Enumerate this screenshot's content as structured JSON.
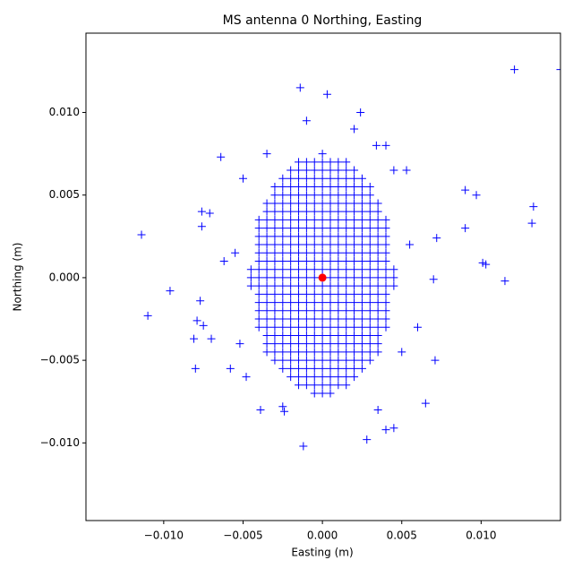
{
  "chart_data": {
    "type": "scatter",
    "title": "MS antenna 0 Northing, Easting",
    "x_label": "Easting (m)",
    "y_label": "Northing (m)",
    "xlim": [
      -0.0149,
      0.015
    ],
    "ylim": [
      -0.0147,
      0.0148
    ],
    "xticks": [
      {
        "value": -0.01,
        "label": "−0.010"
      },
      {
        "value": -0.005,
        "label": "−0.005"
      },
      {
        "value": 0,
        "label": "0.000"
      },
      {
        "value": 0.005,
        "label": "0.005"
      },
      {
        "value": 0.01,
        "label": "0.010"
      }
    ],
    "yticks": [
      {
        "value": -0.01,
        "label": "−0.010"
      },
      {
        "value": -0.005,
        "label": "−0.005"
      },
      {
        "value": 0,
        "label": "0.000"
      },
      {
        "value": 0.005,
        "label": "0.005"
      },
      {
        "value": 0.01,
        "label": "0.010"
      }
    ],
    "grid": false,
    "series": [
      {
        "color": "#0000ff",
        "marker": "+",
        "x": [
          0,
          -0.0015,
          -0.001,
          -0.0005,
          0,
          0.0005,
          0.001,
          0.0015,
          -0.002,
          -0.0015,
          -0.001,
          -0.0005,
          0,
          0.0005,
          0.001,
          0.0015,
          0.002,
          -0.0025,
          -0.002,
          -0.0015,
          -0.001,
          -0.0005,
          0,
          0.0005,
          0.001,
          0.0015,
          0.002,
          0.0025,
          -0.003,
          -0.0025,
          -0.002,
          -0.0015,
          -0.001,
          -0.0005,
          0,
          0.0005,
          0.001,
          0.0015,
          0.002,
          0.0025,
          0.003,
          -0.003,
          -0.0025,
          -0.002,
          -0.0015,
          -0.001,
          -0.0005,
          0,
          0.0005,
          0.001,
          0.0015,
          0.002,
          0.0025,
          0.003,
          -0.0035,
          -0.003,
          -0.0025,
          -0.002,
          -0.0015,
          -0.001,
          -0.0005,
          0,
          0.0005,
          0.001,
          0.0015,
          0.002,
          0.0025,
          0.003,
          0.0035,
          -0.0035,
          -0.003,
          -0.0025,
          -0.002,
          -0.0015,
          -0.001,
          -0.0005,
          0,
          0.0005,
          0.001,
          0.0015,
          0.002,
          0.0025,
          0.003,
          0.0035,
          -0.004,
          -0.0035,
          -0.003,
          -0.0025,
          -0.002,
          -0.0015,
          -0.001,
          -0.0005,
          0,
          0.0005,
          0.001,
          0.0015,
          0.002,
          0.0025,
          0.003,
          0.0035,
          0.004,
          -0.004,
          -0.0035,
          -0.003,
          -0.0025,
          -0.002,
          -0.0015,
          -0.001,
          -0.0005,
          0,
          0.0005,
          0.001,
          0.0015,
          0.002,
          0.0025,
          0.003,
          0.0035,
          0.004,
          -0.004,
          -0.0035,
          -0.003,
          -0.0025,
          -0.002,
          -0.0015,
          -0.001,
          -0.0005,
          0,
          0.0005,
          0.001,
          0.0015,
          0.002,
          0.0025,
          0.003,
          0.0035,
          0.004,
          -0.004,
          -0.0035,
          -0.003,
          -0.0025,
          -0.002,
          -0.0015,
          -0.001,
          -0.0005,
          0,
          0.0005,
          0.001,
          0.0015,
          0.002,
          0.0025,
          0.003,
          0.0035,
          0.004,
          -0.004,
          -0.0035,
          -0.003,
          -0.0025,
          -0.002,
          -0.0015,
          -0.001,
          -0.0005,
          0,
          0.0005,
          0.001,
          0.0015,
          0.002,
          0.0025,
          0.003,
          0.0035,
          0.004,
          -0.004,
          -0.0035,
          -0.003,
          -0.0025,
          -0.002,
          -0.0015,
          -0.001,
          -0.0005,
          0,
          0.0005,
          0.001,
          0.0015,
          0.002,
          0.0025,
          0.003,
          0.0035,
          0.004,
          -0.0045,
          -0.004,
          -0.0035,
          -0.003,
          -0.0025,
          -0.002,
          -0.0015,
          -0.001,
          -0.0005,
          0,
          0.0005,
          0.001,
          0.0015,
          0.002,
          0.0025,
          0.003,
          0.0035,
          0.004,
          0.0045,
          -0.0045,
          -0.004,
          -0.0035,
          -0.003,
          -0.0025,
          -0.002,
          -0.0015,
          -0.001,
          -0.0005,
          0,
          0.0005,
          0.001,
          0.0015,
          0.002,
          0.0025,
          0.003,
          0.0035,
          0.004,
          0.0045,
          -0.0045,
          -0.004,
          -0.0035,
          -0.003,
          -0.0025,
          -0.002,
          -0.0015,
          -0.001,
          -0.0005,
          0,
          0.0005,
          0.001,
          0.0015,
          0.002,
          0.0025,
          0.003,
          0.0035,
          0.004,
          0.0045,
          -0.004,
          -0.0035,
          -0.003,
          -0.0025,
          -0.002,
          -0.0015,
          -0.001,
          -0.0005,
          0,
          0.0005,
          0.001,
          0.0015,
          0.002,
          0.0025,
          0.003,
          0.0035,
          0.004,
          -0.004,
          -0.0035,
          -0.003,
          -0.0025,
          -0.002,
          -0.0015,
          -0.001,
          -0.0005,
          0,
          0.0005,
          0.001,
          0.0015,
          0.002,
          0.0025,
          0.003,
          0.0035,
          0.004,
          -0.004,
          -0.0035,
          -0.003,
          -0.0025,
          -0.002,
          -0.0015,
          -0.001,
          -0.0005,
          0,
          0.0005,
          0.001,
          0.0015,
          0.002,
          0.0025,
          0.003,
          0.0035,
          0.004,
          -0.004,
          -0.0035,
          -0.003,
          -0.0025,
          -0.002,
          -0.0015,
          -0.001,
          -0.0005,
          0,
          0.0005,
          0.001,
          0.0015,
          0.002,
          0.0025,
          0.003,
          0.0035,
          0.004,
          -0.004,
          -0.0035,
          -0.003,
          -0.0025,
          -0.002,
          -0.0015,
          -0.001,
          -0.0005,
          0,
          0.0005,
          0.001,
          0.0015,
          0.002,
          0.0025,
          0.003,
          0.0035,
          0.004,
          -0.0035,
          -0.003,
          -0.0025,
          -0.002,
          -0.0015,
          -0.001,
          -0.0005,
          0,
          0.0005,
          0.001,
          0.0015,
          0.002,
          0.0025,
          0.003,
          0.0035,
          -0.0035,
          -0.003,
          -0.0025,
          -0.002,
          -0.0015,
          -0.001,
          -0.0005,
          0,
          0.0005,
          0.001,
          0.0015,
          0.002,
          0.0025,
          0.003,
          0.0035,
          -0.0035,
          -0.003,
          -0.0025,
          -0.002,
          -0.0015,
          -0.001,
          -0.0005,
          0,
          0.0005,
          0.001,
          0.0015,
          0.002,
          0.0025,
          0.003,
          0.0035,
          -0.003,
          -0.0025,
          -0.002,
          -0.0015,
          -0.001,
          -0.0005,
          0,
          0.0005,
          0.001,
          0.0015,
          0.002,
          0.0025,
          0.003,
          -0.0025,
          -0.002,
          -0.0015,
          -0.001,
          -0.0005,
          0,
          0.0005,
          0.001,
          0.0015,
          0.002,
          0.0025,
          -0.002,
          -0.0015,
          -0.001,
          -0.0005,
          0,
          0.0005,
          0.001,
          0.0015,
          0.002,
          -0.0015,
          -0.001,
          -0.0005,
          0,
          0.0005,
          0.001,
          0.0015,
          -0.0005,
          0,
          0.0005,
          0.0121,
          0.015,
          -0.0014,
          0.0003,
          -0.0064,
          -0.0114,
          -0.0096,
          -0.011,
          -0.0075,
          -0.008,
          0.009,
          0.0097,
          0.0133,
          0.0132,
          0.009,
          0.0072,
          0.0101,
          0.0103,
          0.0115,
          0.007,
          0.0071,
          -0.0012,
          0.0028,
          -0.0076,
          -0.0071,
          -0.0076,
          -0.0062,
          -0.0077,
          -0.0079,
          -0.007,
          -0.0081,
          -0.0058,
          -0.0039,
          -0.0024,
          0.0045,
          0.004,
          0.0065,
          0.0053,
          0.0034,
          0.0024,
          -0.005,
          0.0045,
          -0.0052,
          0.005,
          0.0055,
          -0.0055,
          0.006,
          -0.0048,
          0.0035,
          -0.0025,
          0.002,
          -0.001,
          0.004,
          -0.0035
        ],
        "y": [
          0.0075,
          0.007,
          0.007,
          0.007,
          0.007,
          0.007,
          0.007,
          0.007,
          0.0065,
          0.0065,
          0.0065,
          0.0065,
          0.0065,
          0.0065,
          0.0065,
          0.0065,
          0.0065,
          0.006,
          0.006,
          0.006,
          0.006,
          0.006,
          0.006,
          0.006,
          0.006,
          0.006,
          0.006,
          0.006,
          0.0055,
          0.0055,
          0.0055,
          0.0055,
          0.0055,
          0.0055,
          0.0055,
          0.0055,
          0.0055,
          0.0055,
          0.0055,
          0.0055,
          0.0055,
          0.005,
          0.005,
          0.005,
          0.005,
          0.005,
          0.005,
          0.005,
          0.005,
          0.005,
          0.005,
          0.005,
          0.005,
          0.005,
          0.0045,
          0.0045,
          0.0045,
          0.0045,
          0.0045,
          0.0045,
          0.0045,
          0.0045,
          0.0045,
          0.0045,
          0.0045,
          0.0045,
          0.0045,
          0.0045,
          0.0045,
          0.004,
          0.004,
          0.004,
          0.004,
          0.004,
          0.004,
          0.004,
          0.004,
          0.004,
          0.004,
          0.004,
          0.004,
          0.004,
          0.004,
          0.004,
          0.0035,
          0.0035,
          0.0035,
          0.0035,
          0.0035,
          0.0035,
          0.0035,
          0.0035,
          0.0035,
          0.0035,
          0.0035,
          0.0035,
          0.0035,
          0.0035,
          0.0035,
          0.0035,
          0.0035,
          0.003,
          0.003,
          0.003,
          0.003,
          0.003,
          0.003,
          0.003,
          0.003,
          0.003,
          0.003,
          0.003,
          0.003,
          0.003,
          0.003,
          0.003,
          0.003,
          0.003,
          0.0025,
          0.0025,
          0.0025,
          0.0025,
          0.0025,
          0.0025,
          0.0025,
          0.0025,
          0.0025,
          0.0025,
          0.0025,
          0.0025,
          0.0025,
          0.0025,
          0.0025,
          0.0025,
          0.0025,
          0.002,
          0.002,
          0.002,
          0.002,
          0.002,
          0.002,
          0.002,
          0.002,
          0.002,
          0.002,
          0.002,
          0.002,
          0.002,
          0.002,
          0.002,
          0.002,
          0.002,
          0.0015,
          0.0015,
          0.0015,
          0.0015,
          0.0015,
          0.0015,
          0.0015,
          0.0015,
          0.0015,
          0.0015,
          0.0015,
          0.0015,
          0.0015,
          0.0015,
          0.0015,
          0.0015,
          0.0015,
          0.001,
          0.001,
          0.001,
          0.001,
          0.001,
          0.001,
          0.001,
          0.001,
          0.001,
          0.001,
          0.001,
          0.001,
          0.001,
          0.001,
          0.001,
          0.001,
          0.001,
          0.0005,
          0.0005,
          0.0005,
          0.0005,
          0.0005,
          0.0005,
          0.0005,
          0.0005,
          0.0005,
          0.0005,
          0.0005,
          0.0005,
          0.0005,
          0.0005,
          0.0005,
          0.0005,
          0.0005,
          0.0005,
          0.0005,
          0,
          0,
          0,
          0,
          0,
          0,
          0,
          0,
          0,
          0,
          0,
          0,
          0,
          0,
          0,
          0,
          0,
          0,
          0,
          -0.0005,
          -0.0005,
          -0.0005,
          -0.0005,
          -0.0005,
          -0.0005,
          -0.0005,
          -0.0005,
          -0.0005,
          -0.0005,
          -0.0005,
          -0.0005,
          -0.0005,
          -0.0005,
          -0.0005,
          -0.0005,
          -0.0005,
          -0.0005,
          -0.0005,
          -0.001,
          -0.001,
          -0.001,
          -0.001,
          -0.001,
          -0.001,
          -0.001,
          -0.001,
          -0.001,
          -0.001,
          -0.001,
          -0.001,
          -0.001,
          -0.001,
          -0.001,
          -0.001,
          -0.001,
          -0.0015,
          -0.0015,
          -0.0015,
          -0.0015,
          -0.0015,
          -0.0015,
          -0.0015,
          -0.0015,
          -0.0015,
          -0.0015,
          -0.0015,
          -0.0015,
          -0.0015,
          -0.0015,
          -0.0015,
          -0.0015,
          -0.0015,
          -0.002,
          -0.002,
          -0.002,
          -0.002,
          -0.002,
          -0.002,
          -0.002,
          -0.002,
          -0.002,
          -0.002,
          -0.002,
          -0.002,
          -0.002,
          -0.002,
          -0.002,
          -0.002,
          -0.002,
          -0.0025,
          -0.0025,
          -0.0025,
          -0.0025,
          -0.0025,
          -0.0025,
          -0.0025,
          -0.0025,
          -0.0025,
          -0.0025,
          -0.0025,
          -0.0025,
          -0.0025,
          -0.0025,
          -0.0025,
          -0.0025,
          -0.0025,
          -0.003,
          -0.003,
          -0.003,
          -0.003,
          -0.003,
          -0.003,
          -0.003,
          -0.003,
          -0.003,
          -0.003,
          -0.003,
          -0.003,
          -0.003,
          -0.003,
          -0.003,
          -0.003,
          -0.003,
          -0.0035,
          -0.0035,
          -0.0035,
          -0.0035,
          -0.0035,
          -0.0035,
          -0.0035,
          -0.0035,
          -0.0035,
          -0.0035,
          -0.0035,
          -0.0035,
          -0.0035,
          -0.0035,
          -0.0035,
          -0.004,
          -0.004,
          -0.004,
          -0.004,
          -0.004,
          -0.004,
          -0.004,
          -0.004,
          -0.004,
          -0.004,
          -0.004,
          -0.004,
          -0.004,
          -0.004,
          -0.004,
          -0.0045,
          -0.0045,
          -0.0045,
          -0.0045,
          -0.0045,
          -0.0045,
          -0.0045,
          -0.0045,
          -0.0045,
          -0.0045,
          -0.0045,
          -0.0045,
          -0.0045,
          -0.0045,
          -0.0045,
          -0.005,
          -0.005,
          -0.005,
          -0.005,
          -0.005,
          -0.005,
          -0.005,
          -0.005,
          -0.005,
          -0.005,
          -0.005,
          -0.005,
          -0.005,
          -0.0055,
          -0.0055,
          -0.0055,
          -0.0055,
          -0.0055,
          -0.0055,
          -0.0055,
          -0.0055,
          -0.0055,
          -0.0055,
          -0.0055,
          -0.006,
          -0.006,
          -0.006,
          -0.006,
          -0.006,
          -0.006,
          -0.006,
          -0.006,
          -0.006,
          -0.0065,
          -0.0065,
          -0.0065,
          -0.0065,
          -0.0065,
          -0.0065,
          -0.0065,
          -0.007,
          -0.007,
          -0.007,
          0.0126,
          0.0126,
          0.0115,
          0.0111,
          0.0073,
          0.0026,
          -0.0008,
          -0.0023,
          -0.0029,
          -0.0055,
          0.0053,
          0.005,
          0.0043,
          0.0033,
          0.003,
          0.0024,
          0.0009,
          0.0008,
          -0.0002,
          -0.0001,
          -0.005,
          -0.0102,
          -0.0098,
          0.004,
          0.0039,
          0.0031,
          0.001,
          -0.0014,
          -0.0026,
          -0.0037,
          -0.0037,
          -0.0055,
          -0.008,
          -0.0081,
          -0.0091,
          -0.0092,
          -0.0076,
          0.0065,
          0.008,
          0.01,
          0.006,
          0.0065,
          -0.004,
          -0.0045,
          0.002,
          0.0015,
          -0.003,
          -0.006,
          -0.008,
          -0.0078,
          0.009,
          0.0095,
          0.008,
          0.0075
        ]
      },
      {
        "color": "#ff0000",
        "marker": "o",
        "x": [
          0
        ],
        "y": [
          0
        ]
      }
    ]
  }
}
